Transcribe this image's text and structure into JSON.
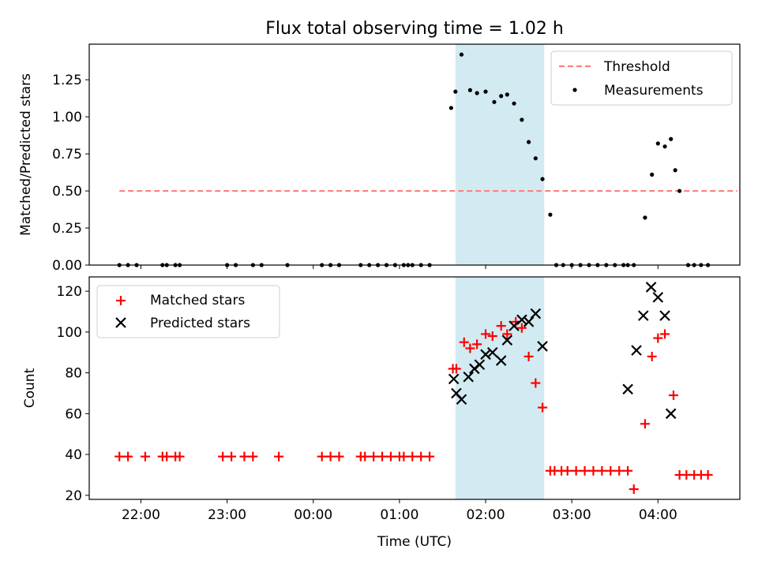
{
  "figure": {
    "title": "Flux total observing time = 1.02 h"
  },
  "chart_data": [
    {
      "type": "scatter",
      "panel": "top",
      "ylabel": "Matched/Predicted stars",
      "xlabel": "",
      "x_unit": "hours since 22:00 UTC",
      "xlim": [
        -0.6,
        6.95
      ],
      "ylim": [
        0.0,
        1.49
      ],
      "yticks": [
        0.0,
        0.25,
        0.5,
        0.75,
        1.0,
        1.25
      ],
      "yticklabels": [
        "0.00",
        "0.25",
        "0.50",
        "0.75",
        "1.00",
        "1.25"
      ],
      "xticks": [
        0,
        1,
        2,
        3,
        4,
        5,
        6
      ],
      "xticklabels_visible": false,
      "legend": {
        "position": "upper right",
        "entries": [
          "Threshold",
          "Measurements"
        ]
      },
      "shaded_span": {
        "x": [
          3.65,
          4.68
        ],
        "color": "#add8e6"
      },
      "threshold": {
        "name": "Threshold",
        "y": 0.5,
        "x": [
          -0.25,
          6.92
        ],
        "color": "#ff8080",
        "style": "dashed"
      },
      "series": [
        {
          "name": "Measurements",
          "color": "#000000",
          "marker": "dot",
          "x": [
            -0.25,
            -0.15,
            -0.05,
            0.25,
            0.3,
            0.4,
            0.45,
            1.0,
            1.1,
            1.3,
            1.4,
            1.7,
            2.1,
            2.2,
            2.3,
            2.55,
            2.65,
            2.75,
            2.85,
            2.95,
            3.05,
            3.1,
            3.15,
            3.25,
            3.35,
            3.6,
            3.65,
            3.72,
            3.82,
            3.9,
            4.0,
            4.1,
            4.18,
            4.25,
            4.33,
            4.42,
            4.5,
            4.58,
            4.66,
            4.75,
            4.82,
            4.9,
            5.0,
            5.1,
            5.2,
            5.3,
            5.4,
            5.5,
            5.6,
            5.65,
            5.72,
            5.85,
            5.93,
            6.0,
            6.08,
            6.15,
            6.2,
            6.25,
            6.35,
            6.42,
            6.5,
            6.58
          ],
          "y": [
            0,
            0,
            0,
            0,
            0,
            0,
            0,
            0,
            0,
            0,
            0,
            0,
            0,
            0,
            0,
            0,
            0,
            0,
            0,
            0,
            0,
            0,
            0,
            0,
            0,
            1.06,
            1.17,
            1.42,
            1.18,
            1.16,
            1.17,
            1.1,
            1.14,
            1.15,
            1.09,
            0.98,
            0.83,
            0.72,
            0.58,
            0.34,
            0,
            0,
            0,
            0,
            0,
            0,
            0,
            0,
            0,
            0,
            0,
            0.32,
            0.61,
            0.82,
            0.8,
            0.85,
            0.64,
            0.5,
            0,
            0,
            0,
            0
          ]
        }
      ]
    },
    {
      "type": "scatter",
      "panel": "bottom",
      "ylabel": "Count",
      "xlabel": "Time (UTC)",
      "x_unit": "hours since 22:00 UTC",
      "xlim": [
        -0.6,
        6.95
      ],
      "ylim": [
        18,
        127
      ],
      "yticks": [
        20,
        40,
        60,
        80,
        100,
        120
      ],
      "yticklabels": [
        "20",
        "40",
        "60",
        "80",
        "100",
        "120"
      ],
      "xticks": [
        0,
        1,
        2,
        3,
        4,
        5,
        6
      ],
      "xticklabels": [
        "22:00",
        "23:00",
        "00:00",
        "01:00",
        "02:00",
        "03:00",
        "04:00"
      ],
      "legend": {
        "position": "upper left",
        "entries": [
          "Matched stars",
          "Predicted stars"
        ]
      },
      "shaded_span": {
        "x": [
          3.65,
          4.68
        ],
        "color": "#add8e6"
      },
      "series": [
        {
          "name": "Matched stars",
          "color": "#ff0000",
          "marker": "plus",
          "x": [
            -0.25,
            -0.15,
            0.05,
            0.25,
            0.3,
            0.4,
            0.45,
            0.95,
            1.05,
            1.2,
            1.3,
            1.6,
            2.1,
            2.2,
            2.3,
            2.55,
            2.6,
            2.7,
            2.8,
            2.9,
            3.0,
            3.05,
            3.15,
            3.25,
            3.35,
            3.62,
            3.66,
            3.75,
            3.82,
            3.9,
            4.0,
            4.08,
            4.18,
            4.25,
            4.35,
            4.42,
            4.5,
            4.58,
            4.66,
            4.75,
            4.8,
            4.88,
            4.95,
            5.05,
            5.15,
            5.25,
            5.35,
            5.45,
            5.55,
            5.65,
            5.72,
            5.85,
            5.93,
            6.0,
            6.08,
            6.18,
            6.25,
            6.33,
            6.42,
            6.5,
            6.58
          ],
          "y": [
            39,
            39,
            39,
            39,
            39,
            39,
            39,
            39,
            39,
            39,
            39,
            39,
            39,
            39,
            39,
            39,
            39,
            39,
            39,
            39,
            39,
            39,
            39,
            39,
            39,
            82,
            82,
            95,
            92,
            94,
            99,
            98,
            103,
            99,
            105,
            102,
            88,
            75,
            63,
            32,
            32,
            32,
            32,
            32,
            32,
            32,
            32,
            32,
            32,
            32,
            23,
            55,
            88,
            97,
            99,
            69,
            30,
            30,
            30,
            30,
            30
          ],
          "y_note": "matched stars count"
        },
        {
          "name": "Predicted stars",
          "color": "#000000",
          "marker": "x",
          "x": [
            3.63,
            3.66,
            3.72,
            3.8,
            3.87,
            3.93,
            4.0,
            4.08,
            4.18,
            4.25,
            4.33,
            4.42,
            4.5,
            4.58,
            4.66,
            5.65,
            5.75,
            5.83,
            5.92,
            6.0,
            6.08,
            6.15
          ],
          "y": [
            77,
            70,
            67,
            78,
            82,
            84,
            89,
            90,
            86,
            96,
            103,
            106,
            105,
            109,
            93,
            72,
            91,
            108,
            122,
            117,
            108,
            60
          ]
        }
      ]
    }
  ]
}
